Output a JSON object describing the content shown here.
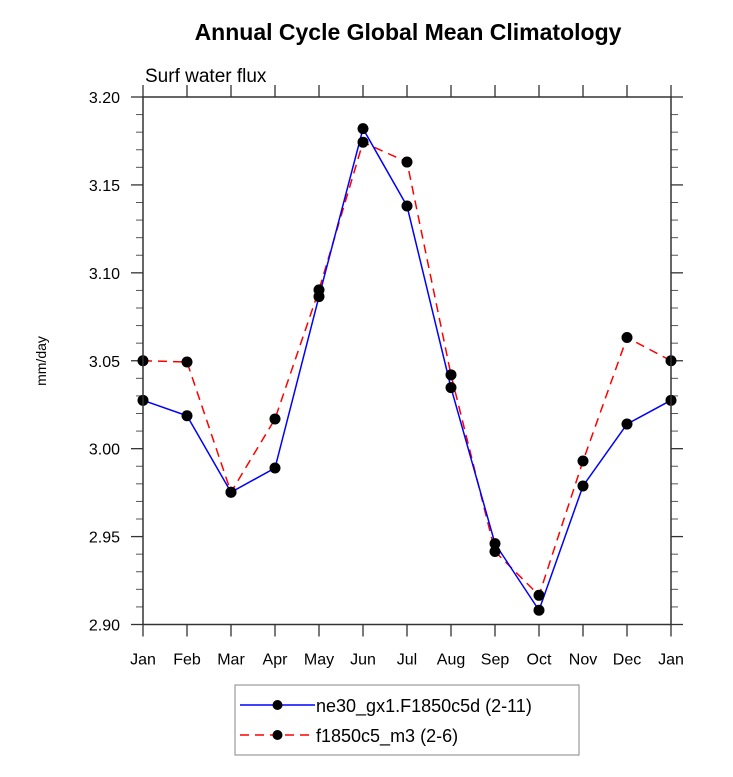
{
  "chart_data": {
    "type": "line",
    "title": "Annual Cycle Global Mean Climatology",
    "subtitle": "Surf water flux",
    "xlabel": "",
    "ylabel": "mm/day",
    "categories": [
      "Jan",
      "Feb",
      "Mar",
      "Apr",
      "May",
      "Jun",
      "Jul",
      "Aug",
      "Sep",
      "Oct",
      "Nov",
      "Dec",
      "Jan"
    ],
    "ylim": [
      2.9,
      3.2
    ],
    "yticks": [
      2.9,
      2.95,
      3.0,
      3.05,
      3.1,
      3.15,
      3.2
    ],
    "ytick_labels": [
      "2.90",
      "2.95",
      "3.00",
      "3.05",
      "3.10",
      "3.15",
      "3.20"
    ],
    "grid": false,
    "legend_position": "bottom-center",
    "series": [
      {
        "name": "ne30_gx1.F1850c5d (2-11)",
        "color": "#0000ff",
        "style": "solid",
        "marker": "filled-circle",
        "values": [
          3.0275,
          3.0187,
          2.9752,
          2.989,
          3.0865,
          3.182,
          3.138,
          3.0347,
          2.946,
          2.9081,
          2.9788,
          3.014,
          3.0275
        ]
      },
      {
        "name": "f1850c5_m3 (2-6)",
        "color": "#ff0000",
        "style": "dashed",
        "marker": "filled-circle",
        "values": [
          3.05,
          3.0493,
          2.9752,
          3.0169,
          3.0903,
          3.1743,
          3.163,
          3.042,
          2.9415,
          2.9166,
          2.993,
          3.0632,
          3.05
        ]
      }
    ]
  }
}
